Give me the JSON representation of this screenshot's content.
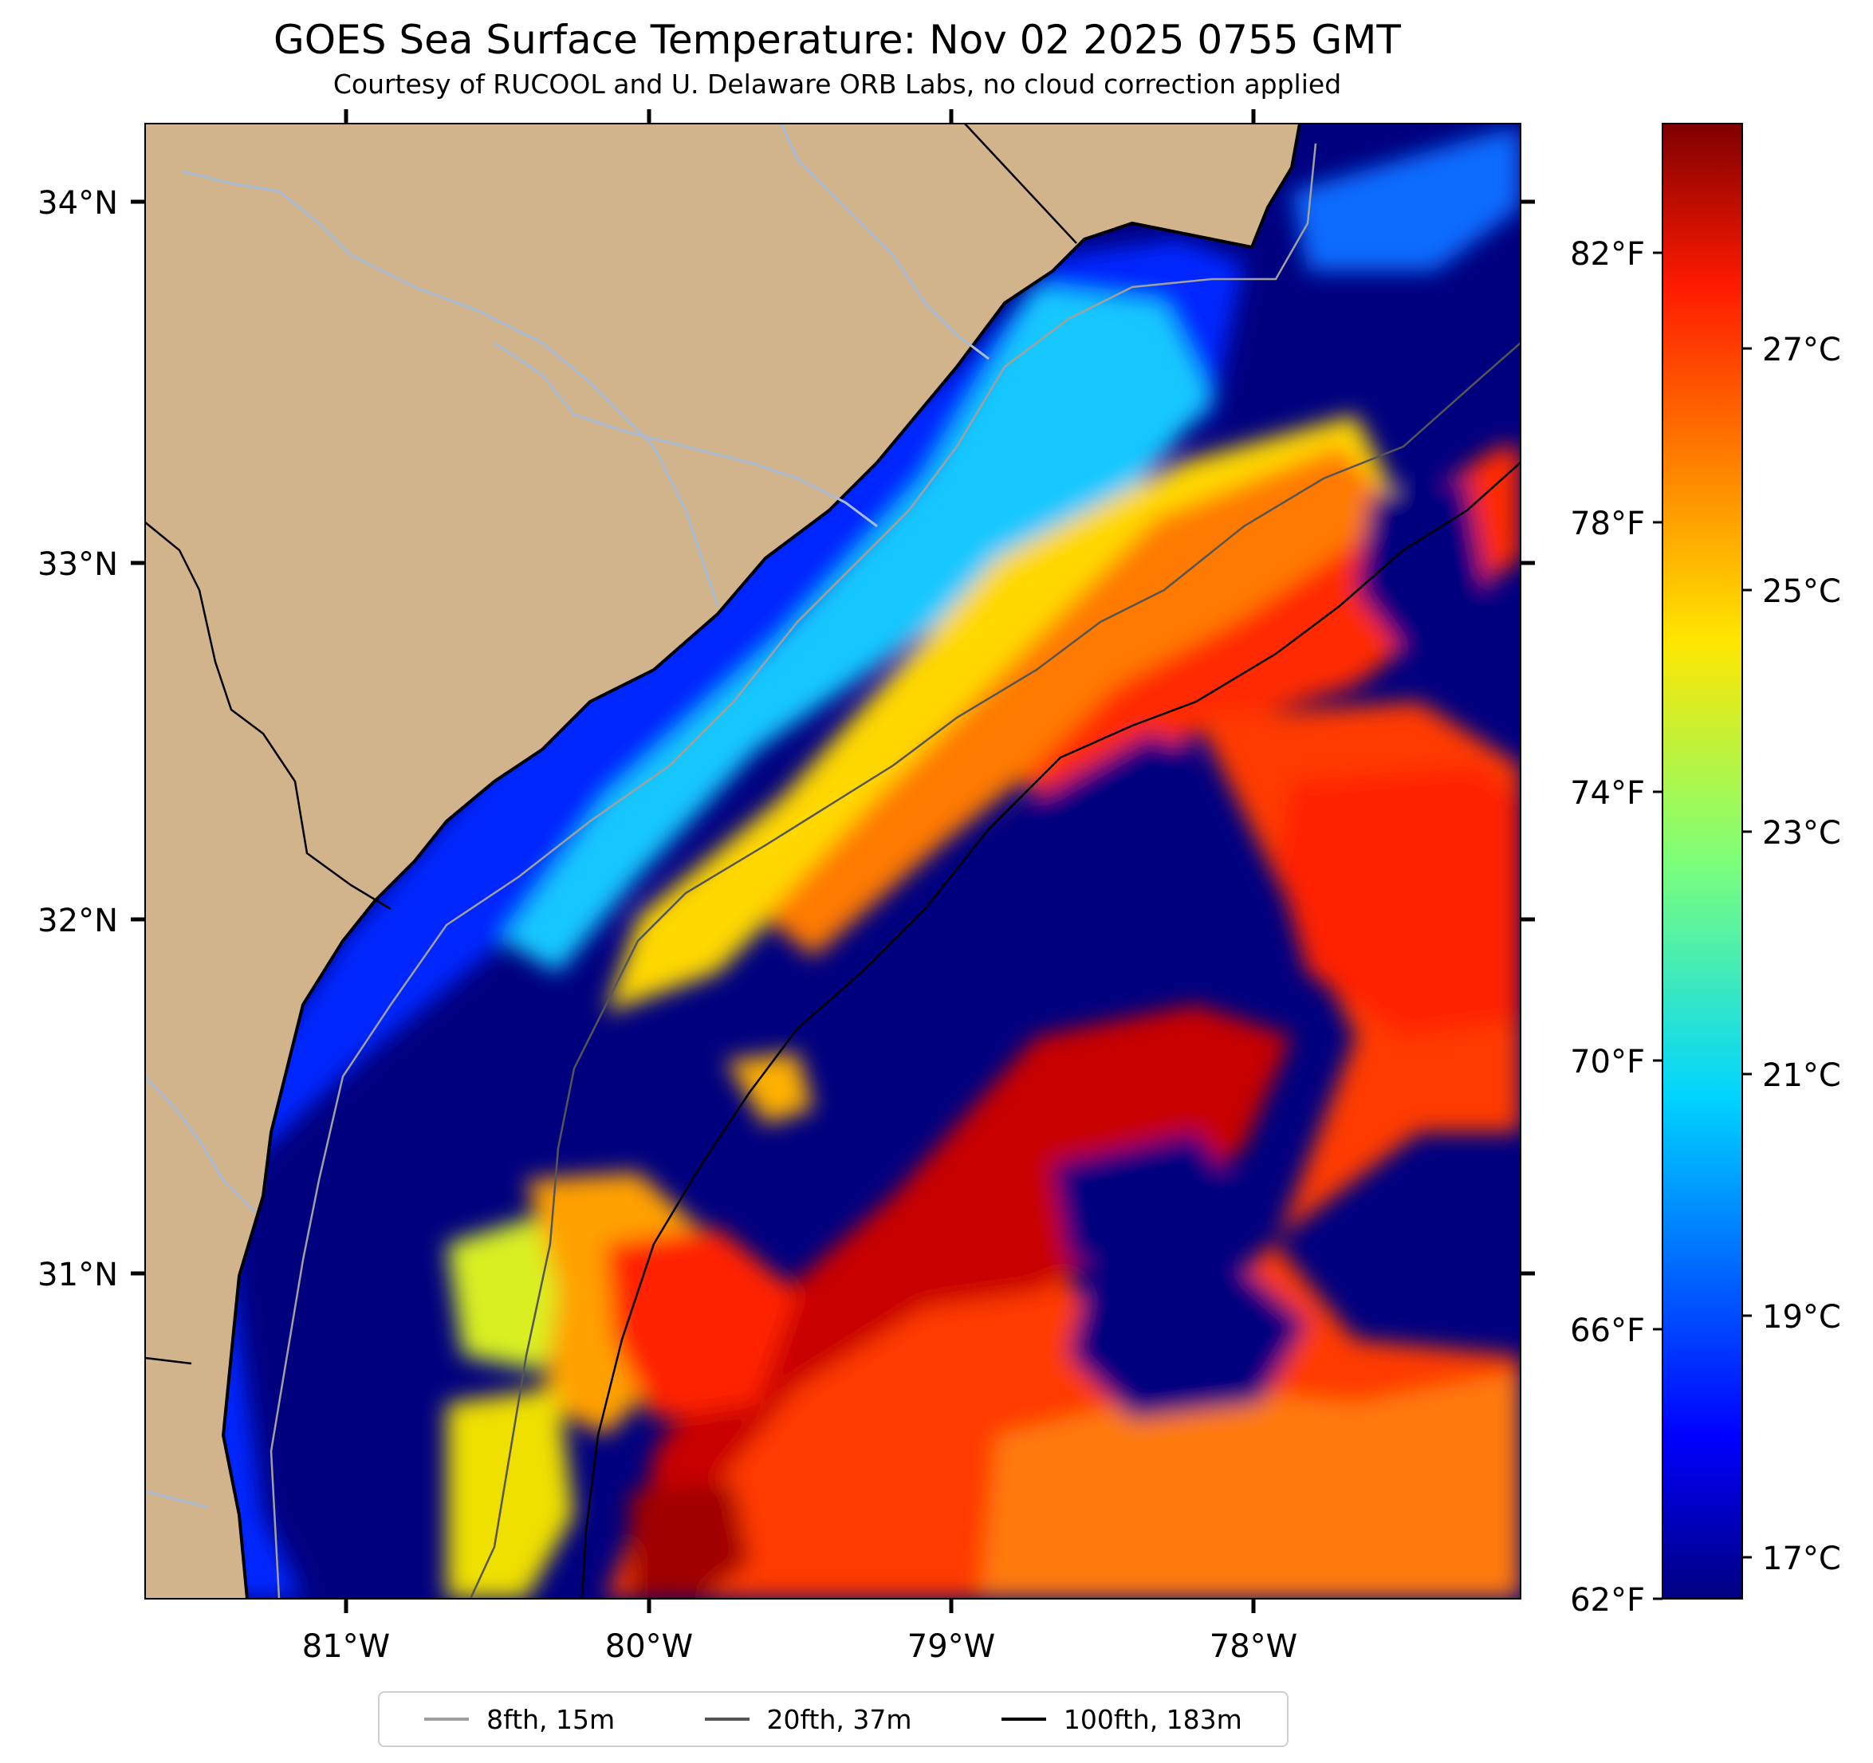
{
  "title": "GOES Sea Surface Temperature: Nov 02 2025 0755 GMT",
  "subtitle": "Courtesy of RUCOOL and U. Delaware ORB Labs, no cloud correction applied",
  "map": {
    "lat_labels": [
      "34°N",
      "33°N",
      "32°N",
      "31°N"
    ],
    "lon_labels": [
      "81°W",
      "80°W",
      "79°W",
      "78°W"
    ],
    "colors": {
      "land": "#d2b48c",
      "coast": "#000000",
      "river": "#a8bcd6"
    }
  },
  "colorbar": {
    "f_labels": [
      "82°F",
      "78°F",
      "74°F",
      "70°F",
      "66°F",
      "62°F"
    ],
    "c_labels": [
      "27°C",
      "25°C",
      "23°C",
      "21°C",
      "19°C",
      "17°C"
    ],
    "colormap": "jet"
  },
  "legend": {
    "items": [
      {
        "label": "8fth, 15m",
        "color": "#a0a0a0"
      },
      {
        "label": "20fth, 37m",
        "color": "#555555"
      },
      {
        "label": "100fth, 183m",
        "color": "#000000"
      }
    ]
  }
}
